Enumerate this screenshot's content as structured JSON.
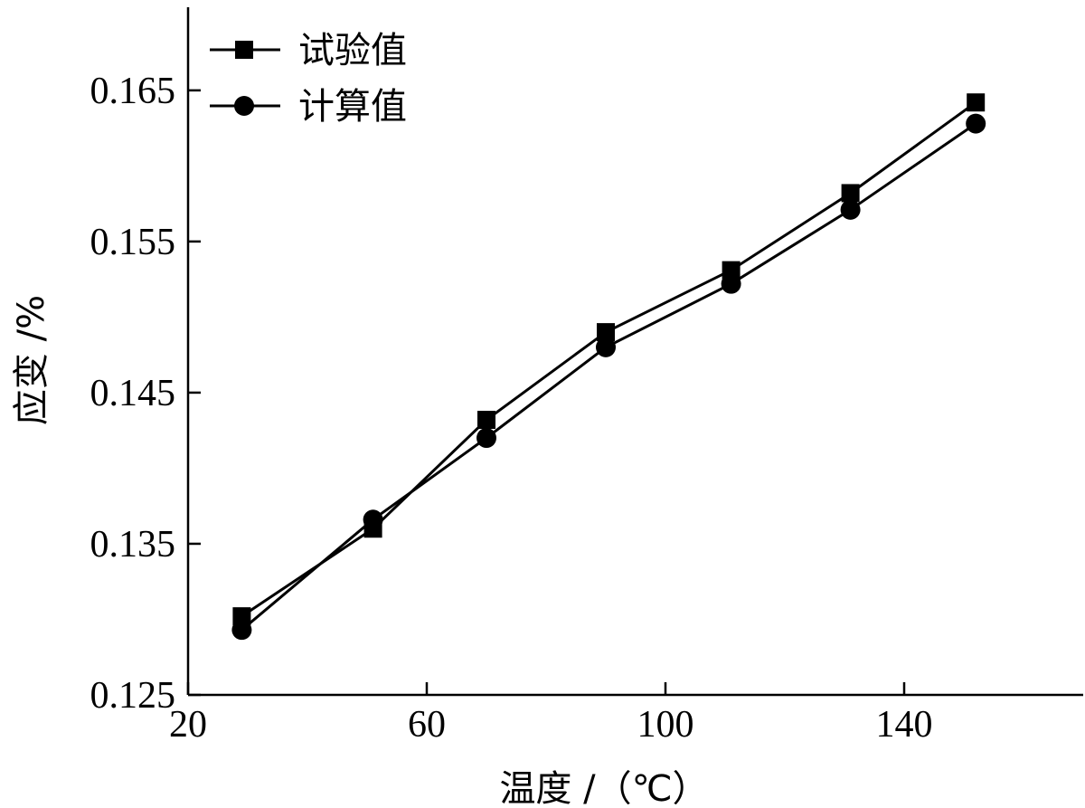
{
  "chart_data": {
    "type": "line",
    "xlabel": "温度 /（℃）",
    "ylabel": "应变 /%",
    "xlim": [
      20,
      170
    ],
    "ylim": [
      0.125,
      0.1705
    ],
    "xticks": [
      20,
      60,
      100,
      140
    ],
    "xtick_labels": [
      "20",
      "60",
      "100",
      "140"
    ],
    "yticks": [
      0.125,
      0.135,
      0.145,
      0.155,
      0.165
    ],
    "ytick_labels": [
      "0.125",
      "0.135",
      "0.145",
      "0.155",
      "0.165"
    ],
    "grid": false,
    "legend_position": "top-left",
    "x": [
      29,
      51,
      70,
      90,
      111,
      131,
      152
    ],
    "series": [
      {
        "name": "试验值",
        "marker": "square",
        "color": "#000000",
        "values": [
          0.1302,
          0.136,
          0.1432,
          0.149,
          0.1531,
          0.1582,
          0.1642
        ]
      },
      {
        "name": "计算值",
        "marker": "circle",
        "color": "#000000",
        "values": [
          0.1293,
          0.1366,
          0.142,
          0.148,
          0.1522,
          0.1571,
          0.1628
        ]
      }
    ]
  }
}
